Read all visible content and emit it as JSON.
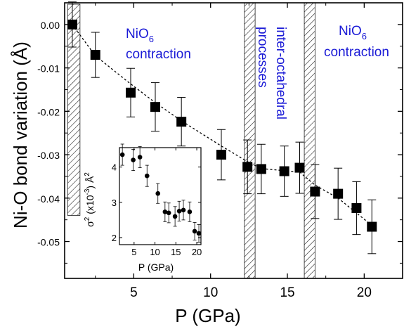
{
  "chart_data": [
    {
      "type": "scatter",
      "title": "",
      "xlabel": "P (GPa)",
      "ylabel": "Ni-O bond variation (Å)",
      "xlim": [
        0.5,
        22.5
      ],
      "ylim": [
        -0.0585,
        0.005
      ],
      "xticks": [
        5,
        10,
        15,
        20
      ],
      "yticks": [
        0.0,
        -0.01,
        -0.02,
        -0.03,
        -0.04,
        -0.05
      ],
      "tick_labels_x": [
        "5",
        "10",
        "15",
        "20"
      ],
      "tick_labels_y": [
        "0.00",
        "-0.01",
        "-0.02",
        "-0.03",
        "-0.04",
        "-0.05"
      ],
      "grid": false,
      "marker": "square",
      "series": [
        {
          "x": [
            1.0,
            2.5,
            4.8,
            6.4,
            8.1,
            10.7,
            12.4,
            13.3,
            14.8,
            15.8,
            16.8,
            18.3,
            19.5,
            20.5
          ],
          "y": [
            0.0,
            -0.007,
            -0.0157,
            -0.019,
            -0.0224,
            -0.03,
            -0.0328,
            -0.0333,
            -0.0338,
            -0.033,
            -0.0385,
            -0.039,
            -0.0423,
            -0.0466
          ],
          "yerr": [
            0.0052,
            0.0052,
            0.0056,
            0.0056,
            0.0056,
            0.0058,
            0.0062,
            0.0057,
            0.0058,
            0.0059,
            0.0062,
            0.0059,
            0.0061,
            0.0062
          ]
        }
      ],
      "trend_line": {
        "x": [
          1.0,
          2.5,
          4.8,
          6.4,
          8.1,
          10.7,
          12.4,
          13.3,
          15.8,
          16.8,
          18.3,
          20.5
        ],
        "y": [
          0.0,
          -0.0072,
          -0.0137,
          -0.018,
          -0.0222,
          -0.028,
          -0.0316,
          -0.0332,
          -0.034,
          -0.037,
          -0.04,
          -0.0463
        ]
      },
      "hatched_regions": [
        [
          0.7,
          1.5
        ],
        [
          12.2,
          12.9
        ],
        [
          16.1,
          16.8
        ]
      ],
      "annotations": [
        {
          "sub": "6",
          "line1_main": "NiO",
          "line2": "contraction",
          "color": "#1a1ad6"
        },
        {
          "line1": "inter-octahedral",
          "line2": "processes",
          "color": "#1a1ad6"
        },
        {
          "sub": "6",
          "line1_main": "NiO",
          "line2": "contraction",
          "color": "#1a1ad6"
        }
      ]
    },
    {
      "type": "scatter",
      "title": "",
      "xlabel": "P (GPa)",
      "ylabel_parts": {
        "sigma": "σ",
        "sup": "2",
        "mid": " (x10",
        "sup2": "-3",
        "end": ") Å",
        "sup3": "2"
      },
      "xlim": [
        1.5,
        21.0
      ],
      "ylim": [
        1.8,
        4.55
      ],
      "xticks": [
        5,
        10,
        15,
        20
      ],
      "yticks": [
        2,
        3,
        4
      ],
      "tick_labels_x": [
        "5",
        "10",
        "15",
        "20"
      ],
      "tick_labels_y": [
        "2",
        "3",
        "4"
      ],
      "series": [
        {
          "x": [
            2.2,
            4.8,
            6.4,
            8.1,
            10.7,
            12.4,
            13.3,
            14.8,
            15.8,
            16.8,
            18.3,
            19.5,
            20.5
          ],
          "y": [
            4.35,
            4.2,
            4.28,
            3.75,
            3.25,
            2.73,
            2.7,
            2.6,
            2.75,
            2.78,
            2.73,
            2.18,
            2.12
          ],
          "yerr": [
            0.3,
            0.3,
            0.3,
            0.3,
            0.28,
            0.28,
            0.28,
            0.28,
            0.28,
            0.28,
            0.28,
            0.25,
            0.25
          ]
        }
      ]
    }
  ]
}
